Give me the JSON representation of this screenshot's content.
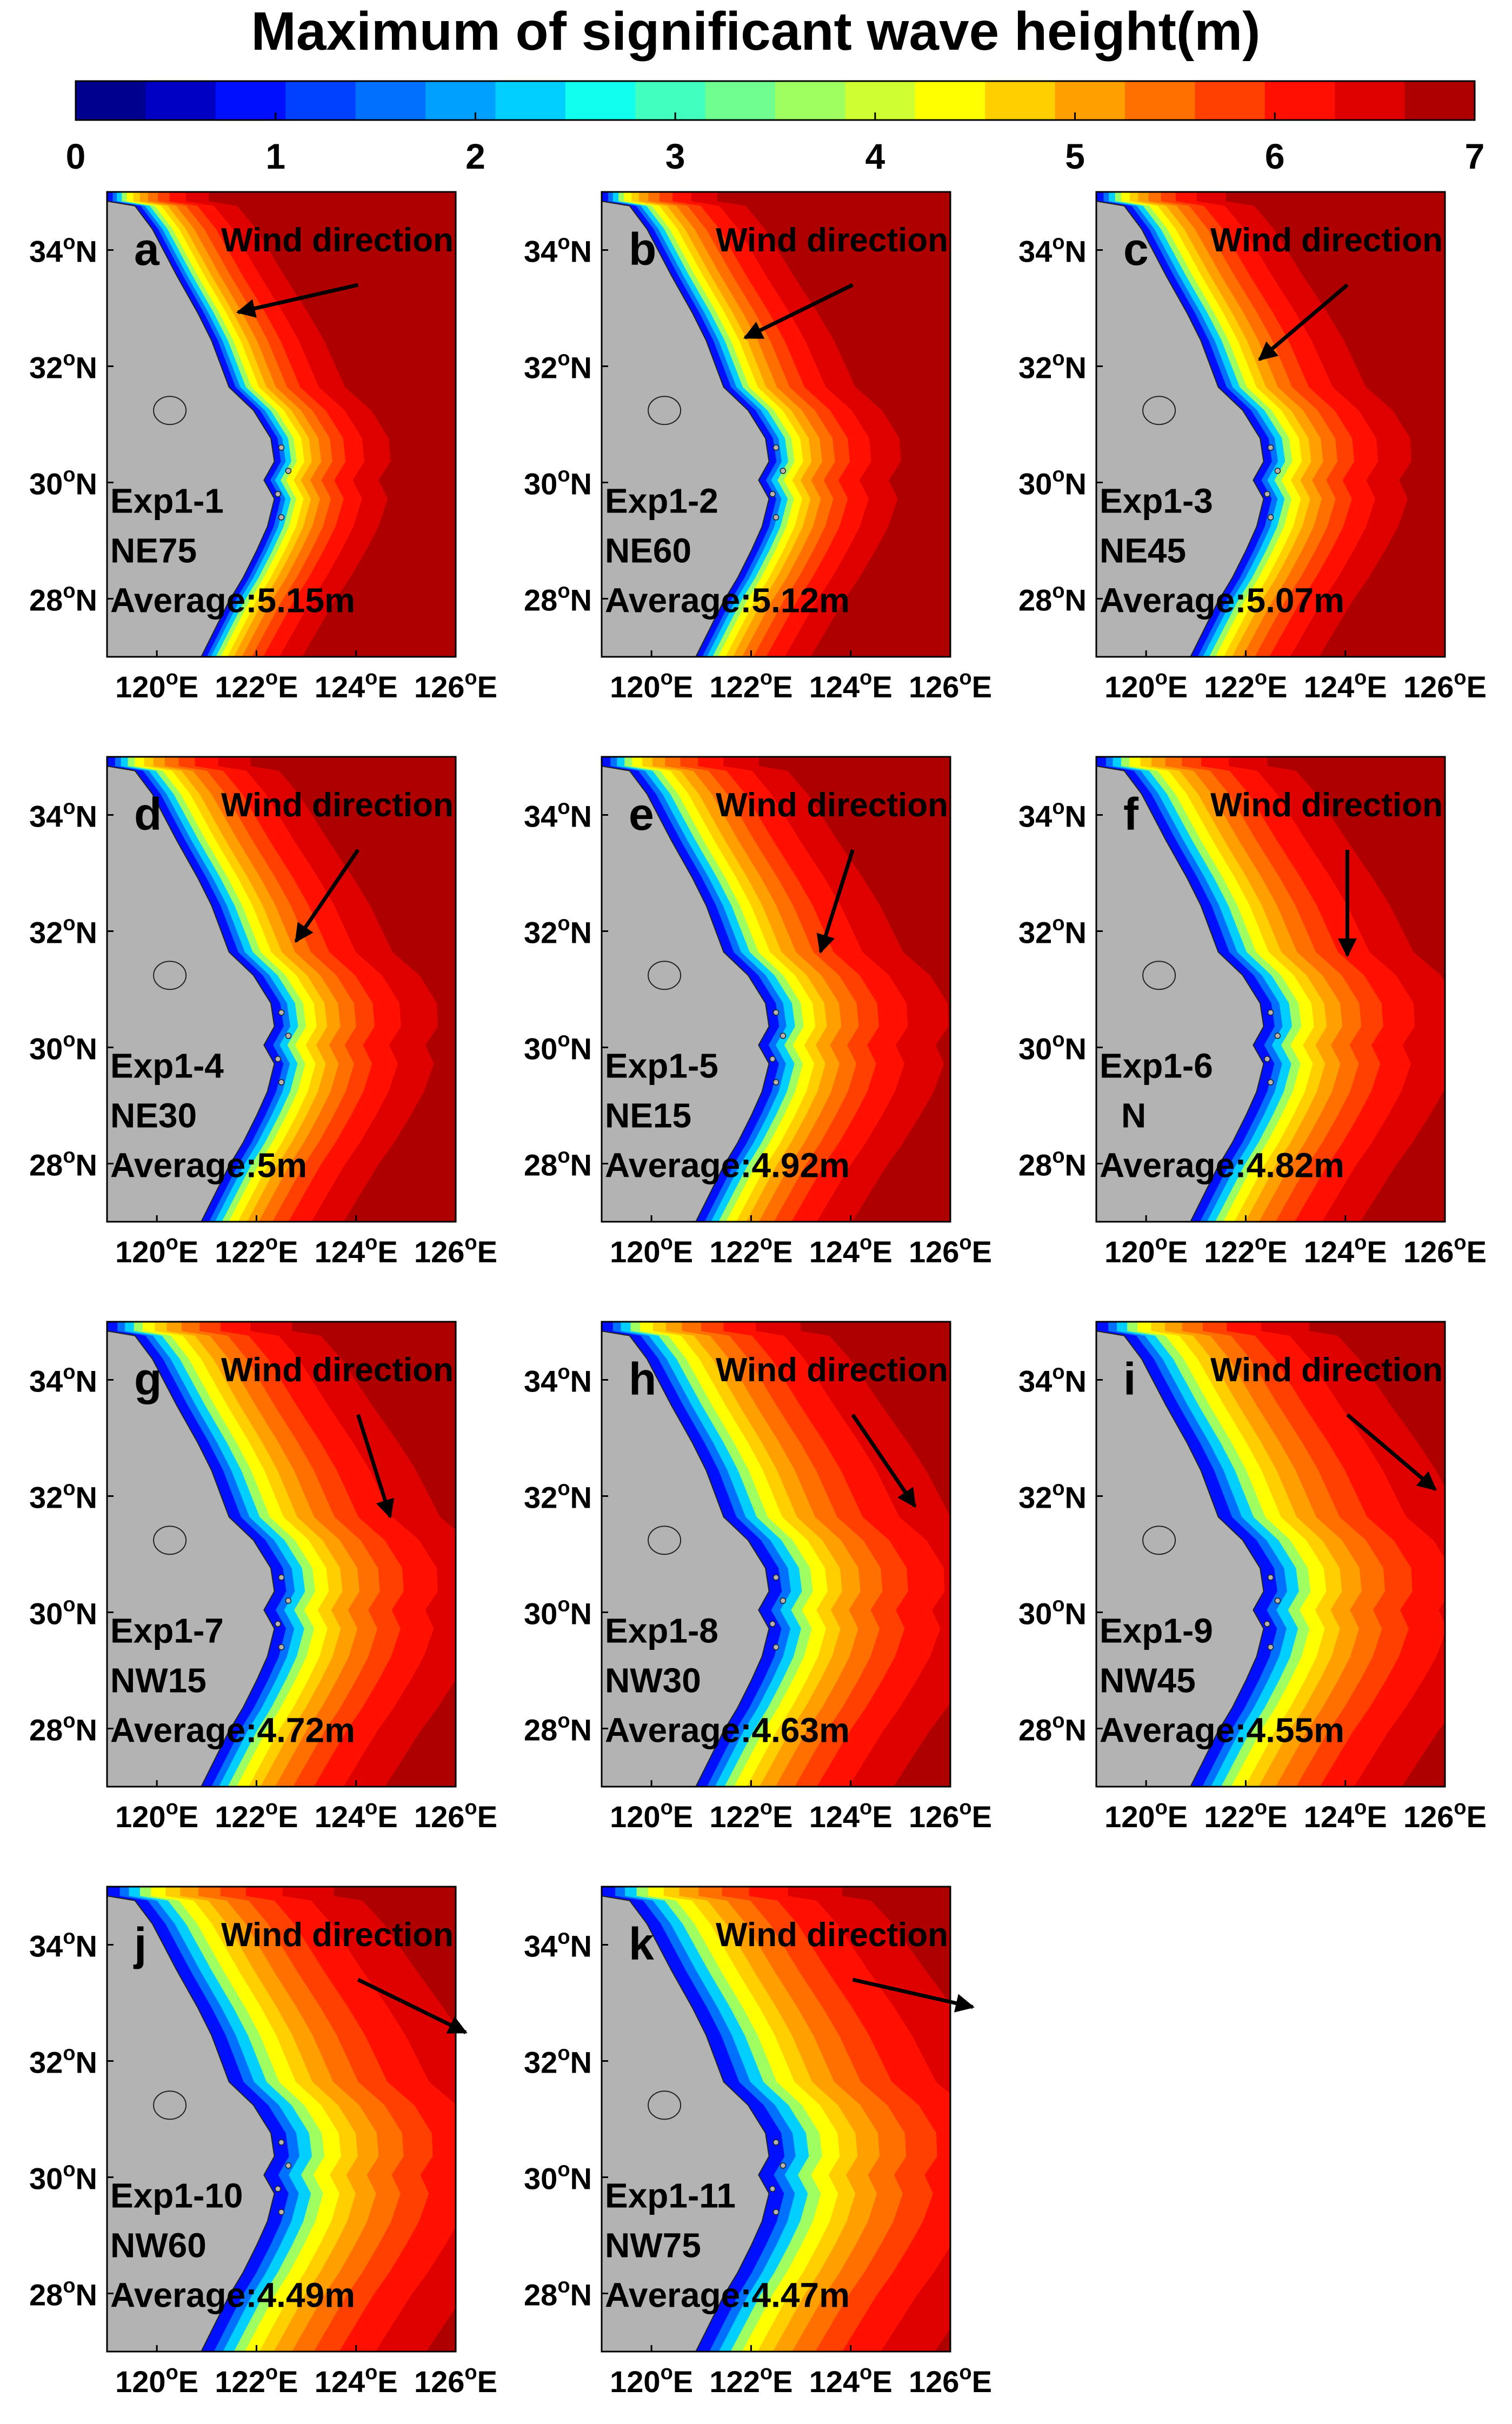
{
  "title": "Maximum of significant wave height(m)",
  "colorbar": {
    "ticks": [
      "0",
      "1",
      "2",
      "3",
      "4",
      "5",
      "6",
      "7"
    ],
    "min": 0,
    "max": 7,
    "colors": [
      "#00008f",
      "#0000c4",
      "#0010ff",
      "#0040ff",
      "#0070ff",
      "#00a0ff",
      "#00cfff",
      "#10ffef",
      "#40ffbf",
      "#70ff8f",
      "#a0ff60",
      "#cfff30",
      "#ffff00",
      "#ffcf00",
      "#ffa000",
      "#ff7000",
      "#ff4000",
      "#ff1000",
      "#df0000",
      "#af0000"
    ]
  },
  "axes": {
    "lat_labels": [
      {
        "deg": "34",
        "suffix": "N",
        "value": 34
      },
      {
        "deg": "32",
        "suffix": "N",
        "value": 32
      },
      {
        "deg": "30",
        "suffix": "N",
        "value": 30
      },
      {
        "deg": "28",
        "suffix": "N",
        "value": 28
      }
    ],
    "lon_labels": [
      {
        "deg": "120",
        "suffix": "E",
        "value": 120
      },
      {
        "deg": "122",
        "suffix": "E",
        "value": 122
      },
      {
        "deg": "124",
        "suffix": "E",
        "value": 124
      },
      {
        "deg": "126",
        "suffix": "E",
        "value": 126
      }
    ],
    "deg_symbol": "o",
    "lat_range": [
      27,
      35
    ],
    "lon_range": [
      119,
      126
    ]
  },
  "wind_label": "Wind direction",
  "average_prefix": "Average:",
  "chart_data": [
    {
      "type": "heatmap",
      "panel": "a",
      "experiment": "Exp1-1",
      "direction": "NE75",
      "wind_bearing_deg": 75,
      "average_label": "5.15m",
      "average": 5.15
    },
    {
      "type": "heatmap",
      "panel": "b",
      "experiment": "Exp1-2",
      "direction": "NE60",
      "wind_bearing_deg": 60,
      "average_label": "5.12m",
      "average": 5.12
    },
    {
      "type": "heatmap",
      "panel": "c",
      "experiment": "Exp1-3",
      "direction": "NE45",
      "wind_bearing_deg": 45,
      "average_label": "5.07m",
      "average": 5.07
    },
    {
      "type": "heatmap",
      "panel": "d",
      "experiment": "Exp1-4",
      "direction": "NE30",
      "wind_bearing_deg": 30,
      "average_label": "5m",
      "average": 5.0
    },
    {
      "type": "heatmap",
      "panel": "e",
      "experiment": "Exp1-5",
      "direction": "NE15",
      "wind_bearing_deg": 15,
      "average_label": "4.92m",
      "average": 4.92
    },
    {
      "type": "heatmap",
      "panel": "f",
      "experiment": "Exp1-6",
      "direction": "N",
      "wind_bearing_deg": 0,
      "average_label": "4.82m",
      "average": 4.82
    },
    {
      "type": "heatmap",
      "panel": "g",
      "experiment": "Exp1-7",
      "direction": "NW15",
      "wind_bearing_deg": -15,
      "average_label": "4.72m",
      "average": 4.72
    },
    {
      "type": "heatmap",
      "panel": "h",
      "experiment": "Exp1-8",
      "direction": "NW30",
      "wind_bearing_deg": -30,
      "average_label": "4.63m",
      "average": 4.63
    },
    {
      "type": "heatmap",
      "panel": "i",
      "experiment": "Exp1-9",
      "direction": "NW45",
      "wind_bearing_deg": -45,
      "average_label": "4.55m",
      "average": 4.55
    },
    {
      "type": "heatmap",
      "panel": "j",
      "experiment": "Exp1-10",
      "direction": "NW60",
      "wind_bearing_deg": -60,
      "average_label": "4.49m",
      "average": 4.49
    },
    {
      "type": "heatmap",
      "panel": "k",
      "experiment": "Exp1-11",
      "direction": "NW75",
      "wind_bearing_deg": -75,
      "average_label": "4.47m",
      "average": 4.47
    }
  ]
}
